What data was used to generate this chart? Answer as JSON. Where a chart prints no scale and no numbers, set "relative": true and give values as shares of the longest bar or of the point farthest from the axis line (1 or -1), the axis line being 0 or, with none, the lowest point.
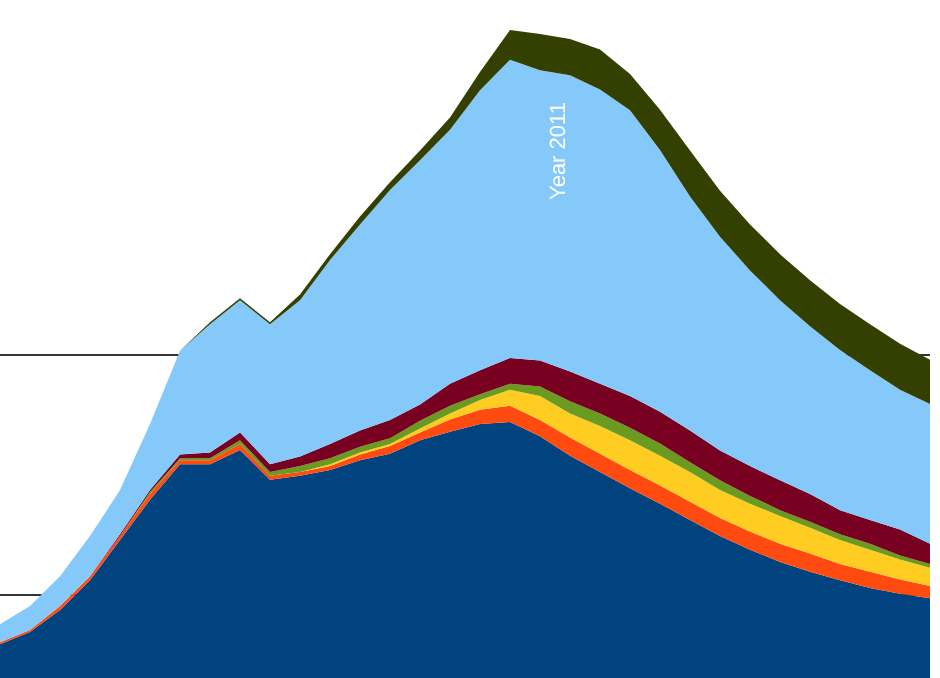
{
  "chart_data": {
    "type": "area",
    "relative": true,
    "stacked": true,
    "categories": [
      null,
      null,
      null,
      null,
      null,
      null,
      null,
      null,
      null,
      null,
      null,
      null,
      null,
      null,
      null,
      null,
      null,
      null,
      null,
      null,
      null,
      null,
      null,
      null,
      null,
      null,
      null,
      null,
      null,
      null,
      null,
      null
    ],
    "series": [
      {
        "color": "#00437f",
        "values": [
          0.052,
          0.071,
          0.105,
          0.151,
          0.213,
          0.275,
          0.33,
          0.33,
          0.352,
          0.306,
          0.312,
          0.321,
          0.336,
          0.346,
          0.367,
          0.38,
          0.392,
          0.395,
          0.373,
          0.343,
          0.318,
          0.293,
          0.269,
          0.244,
          0.219,
          0.198,
          0.179,
          0.164,
          0.151,
          0.139,
          0.13,
          0.123
        ]
      },
      {
        "color": "#ff4a10",
        "values": [
          0.003,
          0.003,
          0.006,
          0.006,
          0.006,
          0.009,
          0.006,
          0.006,
          0.009,
          0.006,
          0.006,
          0.006,
          0.009,
          0.012,
          0.012,
          0.019,
          0.022,
          0.025,
          0.025,
          0.028,
          0.028,
          0.028,
          0.028,
          0.028,
          0.028,
          0.028,
          0.028,
          0.028,
          0.025,
          0.025,
          0.022,
          0.019
        ]
      },
      {
        "color": "#ffcc22",
        "values": [
          0,
          0,
          0,
          0,
          0,
          0,
          0,
          0,
          0,
          0,
          0,
          0.003,
          0.003,
          0.003,
          0.006,
          0.009,
          0.015,
          0.025,
          0.037,
          0.037,
          0.043,
          0.046,
          0.046,
          0.046,
          0.043,
          0.043,
          0.043,
          0.04,
          0.037,
          0.034,
          0.031,
          0.028
        ]
      },
      {
        "color": "#6a9a1f",
        "values": [
          0,
          0,
          0,
          0,
          0,
          0.003,
          0.003,
          0.003,
          0.006,
          0.006,
          0.009,
          0.009,
          0.009,
          0.009,
          0.012,
          0.012,
          0.009,
          0.009,
          0.015,
          0.019,
          0.019,
          0.019,
          0.019,
          0.015,
          0.015,
          0.012,
          0.009,
          0.009,
          0.009,
          0.009,
          0.006,
          0.006
        ]
      },
      {
        "color": "#780020",
        "values": [
          0,
          0,
          0,
          0,
          0.003,
          0.003,
          0.006,
          0.009,
          0.012,
          0.012,
          0.015,
          0.022,
          0.025,
          0.028,
          0.025,
          0.034,
          0.037,
          0.04,
          0.04,
          0.046,
          0.046,
          0.049,
          0.049,
          0.049,
          0.046,
          0.046,
          0.046,
          0.043,
          0.037,
          0.037,
          0.04,
          0.031
        ]
      },
      {
        "color": "#85c8fa",
        "values": [
          0.028,
          0.037,
          0.046,
          0.062,
          0.068,
          0.102,
          0.16,
          0.198,
          0.204,
          0.216,
          0.241,
          0.284,
          0.318,
          0.355,
          0.377,
          0.392,
          0.432,
          0.46,
          0.448,
          0.457,
          0.454,
          0.441,
          0.404,
          0.361,
          0.33,
          0.302,
          0.278,
          0.259,
          0.247,
          0.231,
          0.216,
          0.216
        ]
      },
      {
        "color": "#334000",
        "values": [
          0,
          0,
          0,
          0,
          0,
          0,
          0,
          0.003,
          0.003,
          0.003,
          0.009,
          0.009,
          0.012,
          0.012,
          0.015,
          0.019,
          0.028,
          0.046,
          0.056,
          0.056,
          0.062,
          0.056,
          0.062,
          0.071,
          0.071,
          0.071,
          0.071,
          0.071,
          0.071,
          0.071,
          0.071,
          0.068
        ]
      }
    ],
    "ref_lines": [
      {
        "axis": "y",
        "value": 0.5,
        "color": "#333333"
      },
      {
        "axis": "y",
        "value": 0.13,
        "color": "#333333"
      }
    ],
    "annotations": [
      "Year 2011"
    ]
  }
}
